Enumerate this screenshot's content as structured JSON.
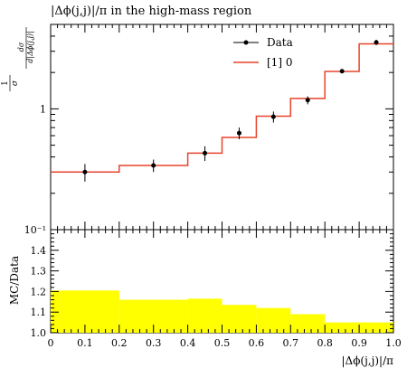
{
  "chart_data": [
    {
      "type": "line",
      "title": "|Δϕ(j,j)|/π in the high-mass region",
      "ylabel_main": "1/σ dσ/d|Δϕ(j,j)|",
      "yscale": "log",
      "ylim": [
        0.1,
        5
      ],
      "ytick_labels": [
        {
          "value": 0.1,
          "label": "10⁻¹"
        },
        {
          "value": 1,
          "label": "1"
        }
      ],
      "legend": {
        "position": "top-right",
        "entries": [
          "Data",
          "[1] 0"
        ]
      },
      "bin_edges": [
        0.0,
        0.2,
        0.4,
        0.5,
        0.6,
        0.7,
        0.8,
        0.9,
        1.0
      ],
      "series": [
        {
          "name": "Data",
          "style": "points-with-errors",
          "color": "#000000",
          "x": [
            0.1,
            0.3,
            0.45,
            0.55,
            0.65,
            0.75,
            0.85,
            0.95
          ],
          "y": [
            0.3,
            0.34,
            0.43,
            0.63,
            0.86,
            1.18,
            2.05,
            3.55
          ],
          "yerr": [
            0.05,
            0.04,
            0.06,
            0.07,
            0.09,
            0.09,
            0.05,
            0.18
          ]
        },
        {
          "name": "[1] 0",
          "style": "step",
          "color": "#e8432d",
          "values": [
            0.3,
            0.34,
            0.43,
            0.58,
            0.87,
            1.22,
            2.04,
            3.45
          ]
        }
      ]
    },
    {
      "type": "bar",
      "ylabel": "MC/Data",
      "xlabel": "|Δϕ(j,j)|/π",
      "ylim": [
        1.0,
        1.5
      ],
      "yticks": [
        "1.0",
        "1.1",
        "1.2",
        "1.3",
        "1.4"
      ],
      "xlim": [
        0.0,
        1.0
      ],
      "xticks": [
        "0",
        "0.1",
        "0.2",
        "0.3",
        "0.4",
        "0.5",
        "0.6",
        "0.7",
        "0.8",
        "0.9",
        "1.0"
      ],
      "fill_color": "#ffff00",
      "bin_edges": [
        0.0,
        0.2,
        0.4,
        0.5,
        0.6,
        0.7,
        0.8,
        0.9,
        1.0
      ],
      "values": [
        1.205,
        1.16,
        1.165,
        1.135,
        1.12,
        1.09,
        1.05,
        1.05
      ]
    }
  ]
}
